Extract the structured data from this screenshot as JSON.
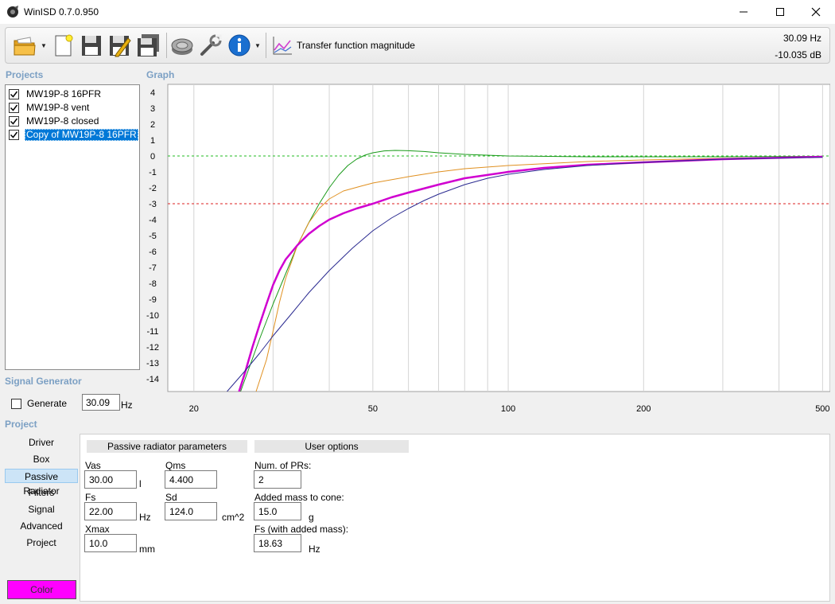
{
  "window": {
    "title": "WinISD 0.7.0.950"
  },
  "toolbar": {
    "buttons": [
      {
        "name": "open-folder-icon"
      },
      {
        "name": "new-document-icon"
      },
      {
        "name": "save-icon"
      },
      {
        "name": "save-as-icon"
      },
      {
        "name": "save-all-icon"
      },
      {
        "name": "driver-icon"
      },
      {
        "name": "tools-icon"
      },
      {
        "name": "info-icon"
      }
    ],
    "graph_type_label": "Transfer function magnitude",
    "cursor_freq": "30.09 Hz",
    "cursor_db": "-10.035 dB"
  },
  "projects": {
    "label": "Projects",
    "items": [
      {
        "label": "MW19P-8 16PFR",
        "checked": true,
        "selected": false
      },
      {
        "label": "MW19P-8 vent",
        "checked": true,
        "selected": false
      },
      {
        "label": "MW19P-8 closed",
        "checked": true,
        "selected": false
      },
      {
        "label": "Copy of MW19P-8 16PFR",
        "checked": true,
        "selected": true
      }
    ]
  },
  "graph": {
    "label": "Graph"
  },
  "chart_data": {
    "type": "line",
    "xscale": "log",
    "xlim": [
      17.5,
      520
    ],
    "ylim": [
      -14.8,
      4.5
    ],
    "x_ticks": [
      20,
      50,
      100,
      200,
      500
    ],
    "y_ticks": [
      4,
      3,
      2,
      1,
      0,
      -1,
      -2,
      -3,
      -4,
      -5,
      -6,
      -7,
      -8,
      -9,
      -10,
      -11,
      -12,
      -13,
      -14
    ],
    "reference_lines": [
      {
        "y": 0,
        "color": "#22bb22",
        "style": "dashed"
      },
      {
        "y": -3,
        "color": "#dd2222",
        "style": "dashed"
      }
    ],
    "series": [
      {
        "color": "#1a9a1a",
        "width": 1,
        "points": [
          [
            25.4,
            -14.8
          ],
          [
            28,
            -11.5
          ],
          [
            30,
            -9.3
          ],
          [
            32,
            -7.4
          ],
          [
            34,
            -5.6
          ],
          [
            36,
            -4.2
          ],
          [
            38,
            -3.0
          ],
          [
            40,
            -2.0
          ],
          [
            42,
            -1.2
          ],
          [
            44,
            -0.6
          ],
          [
            46,
            -0.2
          ],
          [
            48,
            0.05
          ],
          [
            50,
            0.2
          ],
          [
            53,
            0.32
          ],
          [
            56,
            0.35
          ],
          [
            60,
            0.33
          ],
          [
            65,
            0.28
          ],
          [
            70,
            0.2
          ],
          [
            80,
            0.1
          ],
          [
            100,
            0.0
          ],
          [
            150,
            -0.05
          ],
          [
            200,
            -0.05
          ],
          [
            300,
            -0.05
          ],
          [
            500,
            -0.02
          ]
        ]
      },
      {
        "color": "#e09020",
        "width": 1,
        "points": [
          [
            27.5,
            -14.8
          ],
          [
            29,
            -12.8
          ],
          [
            30,
            -11.0
          ],
          [
            31,
            -9.2
          ],
          [
            32,
            -7.7
          ],
          [
            34,
            -5.6
          ],
          [
            36,
            -4.2
          ],
          [
            38,
            -3.3
          ],
          [
            40,
            -2.7
          ],
          [
            43,
            -2.2
          ],
          [
            47,
            -1.9
          ],
          [
            50,
            -1.7
          ],
          [
            60,
            -1.3
          ],
          [
            70,
            -1.0
          ],
          [
            80,
            -0.8
          ],
          [
            100,
            -0.6
          ],
          [
            150,
            -0.35
          ],
          [
            200,
            -0.25
          ],
          [
            300,
            -0.15
          ],
          [
            500,
            -0.05
          ]
        ]
      },
      {
        "color": "#d000d0",
        "width": 2.5,
        "points": [
          [
            25.2,
            -14.8
          ],
          [
            26,
            -13.6
          ],
          [
            27,
            -12.0
          ],
          [
            28,
            -10.6
          ],
          [
            29,
            -9.3
          ],
          [
            30,
            -8.1
          ],
          [
            31,
            -7.2
          ],
          [
            32,
            -6.5
          ],
          [
            34,
            -5.6
          ],
          [
            36,
            -4.9
          ],
          [
            38,
            -4.4
          ],
          [
            40,
            -4.0
          ],
          [
            43,
            -3.6
          ],
          [
            46,
            -3.3
          ],
          [
            50,
            -3.0
          ],
          [
            55,
            -2.6
          ],
          [
            60,
            -2.3
          ],
          [
            70,
            -1.8
          ],
          [
            80,
            -1.4
          ],
          [
            100,
            -1.0
          ],
          [
            120,
            -0.75
          ],
          [
            150,
            -0.55
          ],
          [
            200,
            -0.4
          ],
          [
            300,
            -0.2
          ],
          [
            500,
            -0.05
          ]
        ]
      },
      {
        "color": "#2a2a90",
        "width": 1,
        "points": [
          [
            23.7,
            -14.8
          ],
          [
            26,
            -13.5
          ],
          [
            28,
            -12.4
          ],
          [
            30,
            -11.3
          ],
          [
            33,
            -9.9
          ],
          [
            36,
            -8.6
          ],
          [
            40,
            -7.2
          ],
          [
            45,
            -5.8
          ],
          [
            50,
            -4.7
          ],
          [
            55,
            -3.9
          ],
          [
            60,
            -3.3
          ],
          [
            65,
            -2.8
          ],
          [
            70,
            -2.4
          ],
          [
            80,
            -1.8
          ],
          [
            90,
            -1.4
          ],
          [
            100,
            -1.15
          ],
          [
            120,
            -0.85
          ],
          [
            150,
            -0.6
          ],
          [
            200,
            -0.4
          ],
          [
            300,
            -0.2
          ],
          [
            500,
            -0.08
          ]
        ]
      }
    ]
  },
  "signal_generator": {
    "label": "Signal Generator",
    "generate_label": "Generate",
    "generate_checked": false,
    "frequency": "30.09",
    "unit": "Hz"
  },
  "project_nav": {
    "label": "Project",
    "items": [
      {
        "label": "Driver",
        "active": false
      },
      {
        "label": "Box",
        "active": false
      },
      {
        "label": "Passive Radiator",
        "active": true
      },
      {
        "label": "Filters",
        "active": false
      },
      {
        "label": "Signal",
        "active": false
      },
      {
        "label": "Advanced",
        "active": false
      },
      {
        "label": "Project",
        "active": false
      }
    ],
    "color_button": "Color",
    "color_value": "#ff00ff"
  },
  "pr_params": {
    "header": "Passive radiator parameters",
    "vas": {
      "label": "Vas",
      "value": "30.00",
      "unit": "l"
    },
    "qms": {
      "label": "Qms",
      "value": "4.400"
    },
    "fs": {
      "label": "Fs",
      "value": "22.00",
      "unit": "Hz"
    },
    "sd": {
      "label": "Sd",
      "value": "124.0",
      "unit": "cm^2"
    },
    "xmax": {
      "label": "Xmax",
      "value": "10.0",
      "unit": "mm"
    }
  },
  "user_options": {
    "header": "User options",
    "num_prs": {
      "label": "Num. of PRs:",
      "value": "2"
    },
    "added_mass": {
      "label": "Added mass to cone:",
      "value": "15.0",
      "unit": "g"
    },
    "fs_added": {
      "label": "Fs (with added mass):",
      "value": "18.63",
      "unit": "Hz"
    }
  }
}
